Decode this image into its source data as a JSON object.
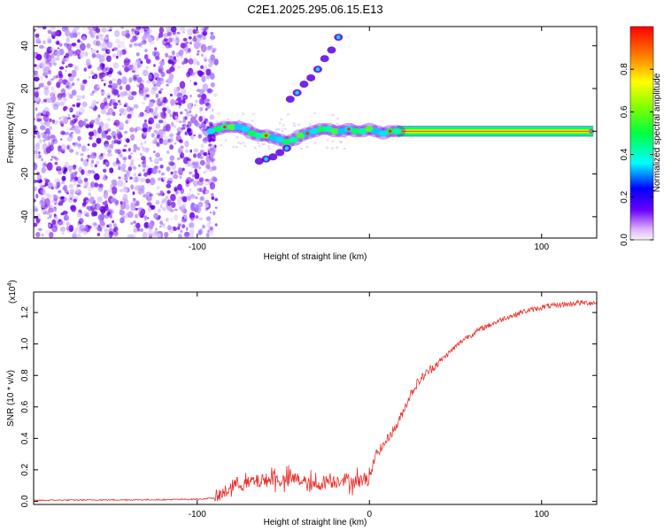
{
  "title": "C2E1.2025.295.06.15.E13",
  "top_chart": {
    "type": "heatmap",
    "xlabel": "Height of straight line (km)",
    "ylabel": "Frequency (Hz)",
    "xlim": [
      -195,
      132
    ],
    "ylim": [
      -50,
      49
    ],
    "xticks": [
      -100,
      0,
      100
    ],
    "xtick_labels": [
      "-100",
      "",
      "100"
    ],
    "yticks": [
      -40,
      -20,
      0,
      20,
      40
    ],
    "ytick_labels": [
      "-40",
      "-20",
      "0",
      "20",
      "40"
    ],
    "noise_region_x": [
      -195,
      -92
    ],
    "main_trace": {
      "x": [
        -92,
        -88,
        -84,
        -80,
        -76,
        -72,
        -68,
        -64,
        -60,
        -56,
        -52,
        -48,
        -44,
        -40,
        -36,
        -32,
        -28,
        -24,
        -20,
        -16,
        -12,
        -8,
        -4,
        0,
        4,
        8,
        12,
        16
      ],
      "y": [
        0,
        1,
        2,
        2,
        2,
        1,
        -1,
        -2,
        -2,
        -3,
        -4,
        -5,
        -4,
        -2,
        -1,
        0,
        1,
        1,
        0,
        0,
        1,
        0,
        0,
        1,
        0,
        -1,
        0,
        0
      ]
    },
    "steady_band": {
      "x": [
        16,
        130
      ],
      "y": 0
    },
    "harmonic_upper": {
      "x": [
        -46,
        -42,
        -38,
        -34,
        -30,
        -26,
        -22,
        -18
      ],
      "y": [
        15,
        18,
        22,
        25,
        29,
        34,
        38,
        44
      ]
    },
    "harmonic_lower": {
      "x": [
        -64,
        -60,
        -56,
        -52,
        -48
      ],
      "y": [
        -14,
        -13,
        -12,
        -10,
        -8
      ]
    }
  },
  "colorbar": {
    "label": "Normalized spectral amplitude",
    "range": [
      0,
      1
    ],
    "ticks": [
      0.0,
      0.2,
      0.4,
      0.6,
      0.8
    ],
    "tick_labels": [
      "0.0",
      "0.2",
      "0.4",
      "0.6",
      "0.8"
    ]
  },
  "chart_data": {
    "type": "line",
    "title": "C2E1.2025.295.06.15.E13",
    "xlabel": "Height of straight line (km)",
    "ylabel": "SNR (10 * v/v)",
    "scale_label": "(x10",
    "scale_exp": "4",
    "scale_close": ")",
    "xlim": [
      -195,
      132
    ],
    "ylim": [
      -0.02,
      1.33
    ],
    "xticks": [
      -100,
      0,
      100
    ],
    "xtick_labels": [
      "-100",
      "0",
      "100"
    ],
    "yticks": [
      0.0,
      0.2,
      0.4,
      0.6,
      0.8,
      1.0,
      1.2
    ],
    "ytick_labels": [
      "0.0",
      "0.2",
      "0.4",
      "0.6",
      "0.8",
      "1.0",
      "1.2"
    ],
    "series": [
      {
        "name": "SNR",
        "color": "#e8302c",
        "x": [
          -195,
          -180,
          -160,
          -140,
          -120,
          -100,
          -90,
          -84,
          -80,
          -76,
          -72,
          -68,
          -64,
          -60,
          -56,
          -52,
          -48,
          -44,
          -40,
          -36,
          -32,
          -28,
          -24,
          -20,
          -16,
          -12,
          -8,
          -4,
          0,
          4,
          8,
          12,
          16,
          20,
          24,
          28,
          32,
          36,
          40,
          44,
          48,
          52,
          56,
          60,
          64,
          68,
          72,
          76,
          80,
          84,
          88,
          92,
          96,
          100,
          104,
          108,
          112,
          116,
          120,
          124,
          128,
          132
        ],
        "y": [
          0.005,
          0.007,
          0.008,
          0.009,
          0.01,
          0.013,
          0.02,
          0.05,
          0.09,
          0.11,
          0.1,
          0.12,
          0.12,
          0.13,
          0.14,
          0.13,
          0.12,
          0.14,
          0.13,
          0.1,
          0.09,
          0.11,
          0.13,
          0.12,
          0.14,
          0.13,
          0.12,
          0.13,
          0.15,
          0.3,
          0.35,
          0.42,
          0.48,
          0.58,
          0.68,
          0.75,
          0.8,
          0.84,
          0.88,
          0.92,
          0.96,
          1.0,
          1.04,
          1.06,
          1.09,
          1.11,
          1.13,
          1.15,
          1.17,
          1.18,
          1.2,
          1.21,
          1.22,
          1.23,
          1.24,
          1.24,
          1.25,
          1.25,
          1.26,
          1.26,
          1.26,
          1.26
        ]
      }
    ]
  }
}
